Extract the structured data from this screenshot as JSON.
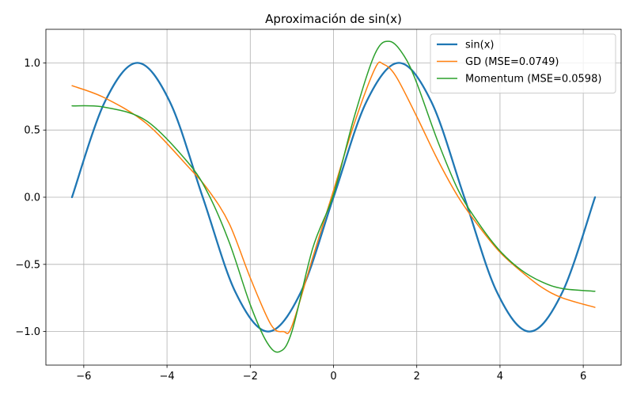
{
  "chart_data": {
    "type": "line",
    "title": "Aproximación de sin(x)",
    "xlabel": "",
    "ylabel": "",
    "xlim": [
      -6.91,
      6.91
    ],
    "ylim": [
      -1.25,
      1.25
    ],
    "x_ticks": [
      -6,
      -4,
      -2,
      0,
      2,
      4,
      6
    ],
    "x_tick_labels": [
      "−6",
      "−4",
      "−2",
      "0",
      "2",
      "4",
      "6"
    ],
    "y_ticks": [
      -1.0,
      -0.5,
      0.0,
      0.5,
      1.0
    ],
    "y_tick_labels": [
      "−1.0",
      "−0.5",
      "0.0",
      "0.5",
      "1.0"
    ],
    "grid": true,
    "legend_position": "upper right",
    "series": [
      {
        "name": "sin(x)",
        "color": "#1f77b4",
        "x": [
          -6.283,
          -5.5,
          -4.712,
          -3.927,
          -3.142,
          -2.356,
          -1.571,
          -0.785,
          0,
          0.785,
          1.571,
          2.356,
          3.142,
          3.927,
          4.712,
          5.5,
          6.283
        ],
        "y": [
          0.0,
          0.706,
          1.0,
          0.707,
          0.0,
          -0.707,
          -1.0,
          -0.707,
          0.0,
          0.707,
          1.0,
          0.707,
          0.0,
          -0.707,
          -1.0,
          -0.706,
          0.0
        ]
      },
      {
        "name": "GD (MSE=0.0749)",
        "color": "#ff7f0e",
        "x": [
          -6.28,
          -5.5,
          -4.5,
          -3.5,
          -3.0,
          -2.5,
          -2.0,
          -1.5,
          -1.2,
          -1.0,
          -0.5,
          0.0,
          0.5,
          1.0,
          1.2,
          1.5,
          2.0,
          2.5,
          3.0,
          3.5,
          4.0,
          4.5,
          5.0,
          5.5,
          6.28
        ],
        "y": [
          0.83,
          0.74,
          0.55,
          0.23,
          0.05,
          -0.2,
          -0.6,
          -0.95,
          -1.0,
          -0.96,
          -0.45,
          0.05,
          0.55,
          0.96,
          0.99,
          0.9,
          0.6,
          0.28,
          0.0,
          -0.22,
          -0.41,
          -0.55,
          -0.67,
          -0.75,
          -0.82
        ]
      },
      {
        "name": "Momentum (MSE=0.0598)",
        "color": "#2ca02c",
        "x": [
          -6.28,
          -5.5,
          -4.5,
          -3.5,
          -3.0,
          -2.5,
          -2.0,
          -1.6,
          -1.3,
          -1.0,
          -0.5,
          0.0,
          0.5,
          1.0,
          1.35,
          1.7,
          2.0,
          2.5,
          3.0,
          3.5,
          4.0,
          4.5,
          5.0,
          5.5,
          6.28
        ],
        "y": [
          0.68,
          0.67,
          0.57,
          0.26,
          0.02,
          -0.34,
          -0.8,
          -1.08,
          -1.15,
          -1.0,
          -0.38,
          0.02,
          0.6,
          1.07,
          1.16,
          1.05,
          0.85,
          0.42,
          0.05,
          -0.2,
          -0.4,
          -0.54,
          -0.63,
          -0.68,
          -0.7
        ]
      }
    ]
  }
}
